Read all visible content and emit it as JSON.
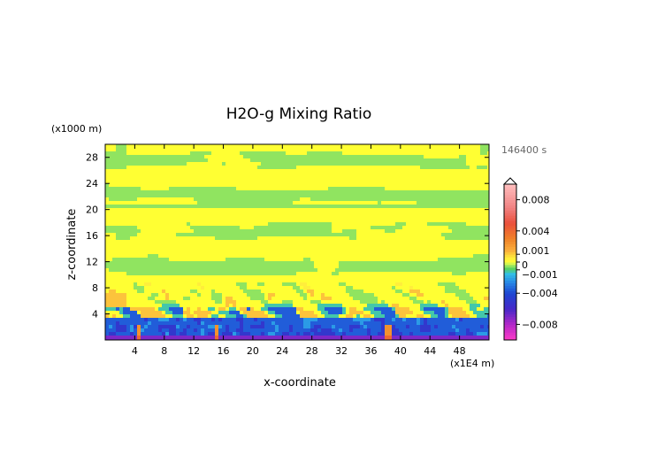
{
  "chart_data": {
    "type": "heatmap",
    "title": "H2O-g Mixing Ratio",
    "xlabel": "x-coordinate",
    "ylabel": "z-coordinate",
    "x_units": "(x1E4 m)",
    "y_units": "(x1000 m)",
    "time_label": "146400 s",
    "xlim": [
      0,
      52
    ],
    "ylim": [
      0,
      30
    ],
    "x_ticks": [
      "4",
      "8",
      "12",
      "16",
      "20",
      "24",
      "28",
      "32",
      "36",
      "40",
      "44",
      "48"
    ],
    "y_ticks": [
      "4",
      "8",
      "12",
      "16",
      "20",
      "24",
      "28"
    ],
    "colorbar_labels": [
      "0.008",
      "0.004",
      "0.001",
      "0",
      "−0.001",
      "−0.004",
      "−0.008"
    ],
    "colorbar_label_values": [
      0.008,
      0.004,
      0.001,
      0,
      -0.001,
      -0.004,
      -0.008
    ],
    "colorbar_range": [
      -0.01,
      0.01
    ],
    "colors": {
      "neutral_yellow": "#ffff33",
      "light_green": "#b4f066",
      "orange": "#f59a3c",
      "green": "#66cc44",
      "cyan": "#33aadd",
      "blue": "#2244cc",
      "red": "#e83a3a"
    }
  }
}
